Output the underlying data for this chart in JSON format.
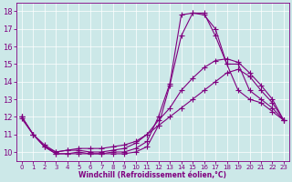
{
  "xlabel": "Windchill (Refroidissement éolien,°C)",
  "background_color": "#cce8e8",
  "line_color": "#800080",
  "xlim": [
    -0.5,
    23.5
  ],
  "ylim": [
    9.5,
    18.5
  ],
  "xticks": [
    0,
    1,
    2,
    3,
    4,
    5,
    6,
    7,
    8,
    9,
    10,
    11,
    12,
    13,
    14,
    15,
    16,
    17,
    18,
    19,
    20,
    21,
    22,
    23
  ],
  "yticks": [
    10,
    11,
    12,
    13,
    14,
    15,
    16,
    17,
    18
  ],
  "line1_x": [
    0,
    1,
    2,
    3,
    4,
    5,
    6,
    7,
    8,
    9,
    10,
    11,
    12,
    13,
    14,
    15,
    16,
    17,
    18,
    19,
    20,
    21,
    22,
    23
  ],
  "line1_y": [
    12.0,
    11.0,
    10.3,
    9.9,
    9.9,
    9.9,
    9.9,
    9.9,
    9.9,
    9.9,
    10.0,
    10.3,
    11.5,
    13.8,
    16.6,
    17.9,
    17.9,
    16.6,
    15.0,
    13.5,
    13.0,
    12.8,
    12.3,
    11.8
  ],
  "line2_x": [
    0,
    1,
    2,
    3,
    4,
    5,
    6,
    7,
    8,
    9,
    10,
    11,
    12,
    13,
    14,
    15,
    16,
    17,
    18,
    19,
    20,
    21,
    22,
    23
  ],
  "line2_y": [
    11.9,
    11.0,
    10.3,
    9.9,
    9.9,
    10.0,
    9.9,
    9.9,
    10.0,
    10.0,
    10.2,
    10.6,
    12.0,
    13.9,
    17.8,
    17.9,
    17.8,
    17.0,
    15.0,
    15.0,
    13.5,
    13.0,
    12.5,
    11.8
  ],
  "line3_x": [
    0,
    1,
    2,
    3,
    4,
    5,
    6,
    7,
    8,
    9,
    10,
    11,
    12,
    13,
    14,
    15,
    16,
    17,
    18,
    19,
    20,
    21,
    22,
    23
  ],
  "line3_y": [
    12.0,
    11.0,
    10.3,
    10.0,
    10.1,
    10.1,
    10.0,
    10.0,
    10.1,
    10.2,
    10.5,
    11.0,
    11.8,
    12.5,
    13.5,
    14.2,
    14.8,
    15.2,
    15.3,
    15.1,
    14.5,
    13.8,
    13.0,
    11.8
  ],
  "line4_x": [
    0,
    1,
    2,
    3,
    4,
    5,
    6,
    7,
    8,
    9,
    10,
    11,
    12,
    13,
    14,
    15,
    16,
    17,
    18,
    19,
    20,
    21,
    22,
    23
  ],
  "line4_y": [
    12.0,
    11.0,
    10.4,
    10.0,
    10.1,
    10.2,
    10.2,
    10.2,
    10.3,
    10.4,
    10.6,
    11.0,
    11.5,
    12.0,
    12.5,
    13.0,
    13.5,
    14.0,
    14.5,
    14.7,
    14.3,
    13.5,
    12.8,
    11.8
  ]
}
